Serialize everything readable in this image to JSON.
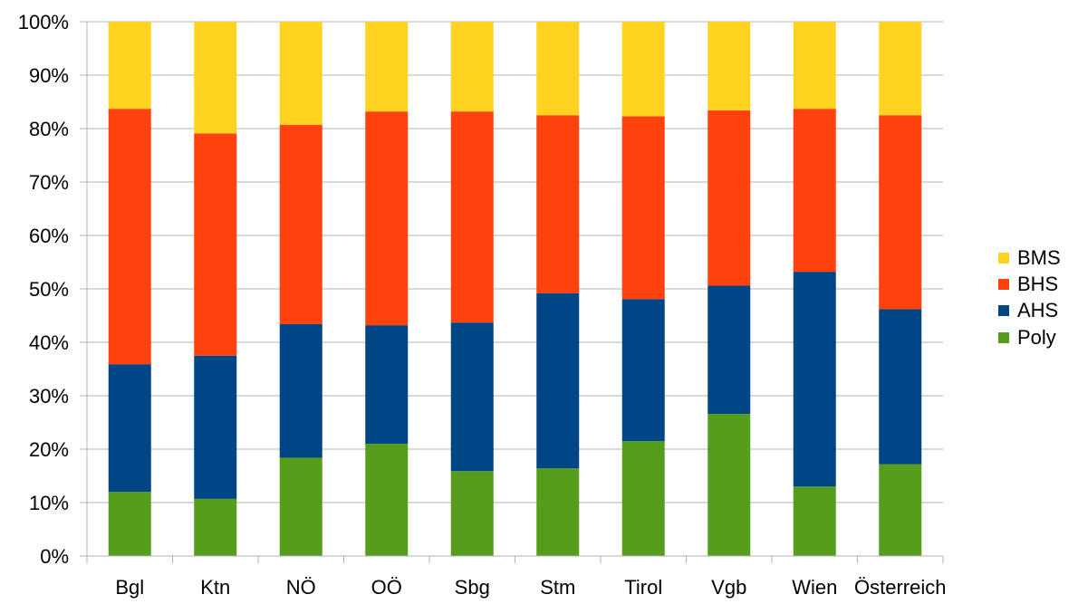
{
  "chart_data": {
    "type": "bar",
    "stacked": true,
    "percent": true,
    "categories": [
      "Bgl",
      "Ktn",
      "NÖ",
      "OÖ",
      "Sbg",
      "Stm",
      "Tirol",
      "Vgb",
      "Wien",
      "Österreich"
    ],
    "series": [
      {
        "name": "Poly",
        "color": "#579D1C",
        "values": [
          12.0,
          10.7,
          18.4,
          21.0,
          15.9,
          16.4,
          21.5,
          26.6,
          13.0,
          17.2
        ]
      },
      {
        "name": "AHS",
        "color": "#004586",
        "values": [
          23.9,
          26.8,
          25.0,
          22.2,
          27.8,
          32.8,
          26.6,
          24.0,
          40.2,
          29.0
        ]
      },
      {
        "name": "BHS",
        "color": "#FF420E",
        "values": [
          47.8,
          41.6,
          37.3,
          40.0,
          39.5,
          33.3,
          34.2,
          32.8,
          30.5,
          36.3
        ]
      },
      {
        "name": "BMS",
        "color": "#FFD320",
        "values": [
          16.3,
          20.9,
          19.3,
          16.8,
          16.8,
          17.5,
          17.7,
          16.6,
          16.3,
          17.5
        ]
      }
    ],
    "legend_order": [
      "BMS",
      "BHS",
      "AHS",
      "Poly"
    ],
    "legend_position": "right",
    "ylim": [
      0,
      100
    ],
    "yticks": [
      "0%",
      "10%",
      "20%",
      "30%",
      "40%",
      "50%",
      "60%",
      "70%",
      "80%",
      "90%",
      "100%"
    ],
    "grid": true,
    "title": "",
    "xlabel": "",
    "ylabel": ""
  }
}
